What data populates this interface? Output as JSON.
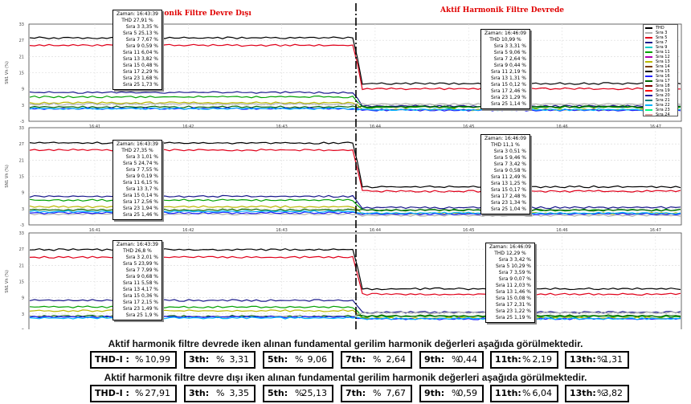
{
  "chart_data": {
    "type": "line",
    "x_ticks": [
      "16:41",
      "16:42",
      "16:43",
      "16:44",
      "16:45",
      "16:46",
      "16:47"
    ],
    "ylim": [
      -3,
      33
    ],
    "y_ticks": [
      "33",
      "27",
      "21",
      "15",
      "9",
      "3",
      "-3"
    ],
    "titles": {
      "left": "Aktif Harmonik Filtre Devre Dışı",
      "right": "Aktif Harmonik Filtre Devrede"
    },
    "legend": [
      {
        "name": "THD",
        "color": "#000000"
      },
      {
        "name": "Sıra 3",
        "color": "#b0b0b0"
      },
      {
        "name": "Sıra 5",
        "color": "#e0001a"
      },
      {
        "name": "Sıra 7",
        "color": "#1a1a8c"
      },
      {
        "name": "Sıra 9",
        "color": "#00c8c8"
      },
      {
        "name": "Sıra 11",
        "color": "#00a000"
      },
      {
        "name": "Sıra 12",
        "color": "#b000b0"
      },
      {
        "name": "Sıra 13",
        "color": "#b8b800"
      },
      {
        "name": "Sıra 14",
        "color": "#7a3c00"
      },
      {
        "name": "Sıra 15",
        "color": "#000000"
      },
      {
        "name": "Sıra 16",
        "color": "#1e1eff"
      },
      {
        "name": "Sıra 17",
        "color": "#006400"
      },
      {
        "name": "Sıra 18",
        "color": "#800000"
      },
      {
        "name": "Sıra 19",
        "color": "#ff0000"
      },
      {
        "name": "Sıra 20",
        "color": "#2020a0"
      },
      {
        "name": "Sıra 21",
        "color": "#008080"
      },
      {
        "name": "Sıra 22",
        "color": "#00b4ff"
      },
      {
        "name": "Sıra 23",
        "color": "#00ff80"
      },
      {
        "name": "Sıra 24",
        "color": "#d8a0a0"
      }
    ],
    "panels": [
      {
        "ylabel": "SN1 Vh (%)",
        "series": [
          {
            "name": "THD",
            "color": "#000000",
            "before": 27.91,
            "after": 10.99
          },
          {
            "name": "Sıra 5",
            "color": "#e0001a",
            "before": 25.13,
            "after": 9.06
          },
          {
            "name": "Sıra 11",
            "color": "#00a000",
            "before": 6.04,
            "after": 2.19
          },
          {
            "name": "Sıra 13",
            "color": "#b8b800",
            "before": 3.82,
            "after": 1.31
          },
          {
            "name": "Sıra 7",
            "color": "#1a1a8c",
            "before": 7.67,
            "after": 2.64
          },
          {
            "name": "Sıra 17",
            "color": "#006400",
            "before": 2.29,
            "after": 2.46
          },
          {
            "name": "Sıra 3",
            "color": "#b0b0b0",
            "before": 3.35,
            "after": 3.31
          },
          {
            "name": "Sıra 25",
            "color": "#1e1eff",
            "before": 1.73,
            "after": 1.14
          },
          {
            "name": "Sıra 23",
            "color": "#00b4ff",
            "before": 1.68,
            "after": 1.29
          }
        ],
        "tip_before": {
          "time": "Zaman: 16:43:39",
          "thd": "THD 27,91 %",
          "rows": [
            "Sıra 3 3,35 %",
            "Sıra 5 25,13 %",
            "Sıra 7 7,67 %",
            "Sıra 9 0,59 %",
            "Sıra 11 6,04 %",
            "Sıra 13 3,82 %",
            "Sıra 15 0,48 %",
            "Sıra 17 2,29 %",
            "Sıra 23 1,68 %",
            "Sıra 25 1,73 %"
          ]
        },
        "tip_after": {
          "time": "Zaman: 16:46:09",
          "thd": "THD 10,99 %",
          "rows": [
            "Sıra 3 3,31 %",
            "Sıra 5 9,06 %",
            "Sıra 7 2,64 %",
            "Sıra 9 0,44 %",
            "Sıra 11 2,19 %",
            "Sıra 13 1,31 %",
            "Sıra 15 0,12 %",
            "Sıra 17 2,46 %",
            "Sıra 23 1,29 %",
            "Sıra 25 1,14 %"
          ]
        }
      },
      {
        "ylabel": "SN1 Vh (%)",
        "series": [
          {
            "name": "THD",
            "color": "#000000",
            "before": 27.35,
            "after": 11.1
          },
          {
            "name": "Sıra 5",
            "color": "#e0001a",
            "before": 24.74,
            "after": 9.46
          },
          {
            "name": "Sıra 11",
            "color": "#00a000",
            "before": 6.15,
            "after": 2.49
          },
          {
            "name": "Sıra 13",
            "color": "#b8b800",
            "before": 3.7,
            "after": 1.25
          },
          {
            "name": "Sıra 7",
            "color": "#1a1a8c",
            "before": 7.55,
            "after": 3.42
          },
          {
            "name": "Sıra 17",
            "color": "#006400",
            "before": 2.56,
            "after": 2.48
          },
          {
            "name": "Sıra 3",
            "color": "#b0b0b0",
            "before": 1.01,
            "after": 0.51
          },
          {
            "name": "Sıra 25",
            "color": "#1e1eff",
            "before": 1.46,
            "after": 1.04
          },
          {
            "name": "Sıra 23",
            "color": "#00b4ff",
            "before": 1.94,
            "after": 1.34
          }
        ],
        "tip_before": {
          "time": "Zaman: 16:43:39",
          "thd": "THD 27,35 %",
          "rows": [
            "Sıra 3 1,01 %",
            "Sıra 5 24,74 %",
            "Sıra 7 7,55 %",
            "Sıra 9 0,19 %",
            "Sıra 11 6,15 %",
            "Sıra 13 3,7 %",
            "Sıra 15 0,14 %",
            "Sıra 17 2,56 %",
            "Sıra 23 1,94 %",
            "Sıra 25 1,46 %"
          ]
        },
        "tip_after": {
          "time": "Zaman: 16:46:09",
          "thd": "THD 11,1 %",
          "rows": [
            "Sıra 3 0,51 %",
            "Sıra 5 9,46 %",
            "Sıra 7 3,42 %",
            "Sıra 9 0,58 %",
            "Sıra 11 2,49 %",
            "Sıra 13 1,25 %",
            "Sıra 15 0,17 %",
            "Sıra 17 2,48 %",
            "Sıra 23 1,34 %",
            "Sıra 25 1,04 %"
          ]
        }
      },
      {
        "ylabel": "SN1 Vh (%)",
        "series": [
          {
            "name": "THD",
            "color": "#000000",
            "before": 26.8,
            "after": 12.29
          },
          {
            "name": "Sıra 5",
            "color": "#e0001a",
            "before": 23.99,
            "after": 10.29
          },
          {
            "name": "Sıra 11",
            "color": "#00a000",
            "before": 5.58,
            "after": 2.03
          },
          {
            "name": "Sıra 13",
            "color": "#b8b800",
            "before": 4.17,
            "after": 1.46
          },
          {
            "name": "Sıra 7",
            "color": "#1a1a8c",
            "before": 7.99,
            "after": 3.59
          },
          {
            "name": "Sıra 17",
            "color": "#006400",
            "before": 2.15,
            "after": 2.31
          },
          {
            "name": "Sıra 3",
            "color": "#b0b0b0",
            "before": 2.01,
            "after": 3.42
          },
          {
            "name": "Sıra 25",
            "color": "#1e1eff",
            "before": 1.9,
            "after": 1.19
          },
          {
            "name": "Sıra 23",
            "color": "#00b4ff",
            "before": 1.49,
            "after": 1.22
          }
        ],
        "tip_before": {
          "time": "Zaman: 16:43:39",
          "thd": "THD 26,8 %",
          "rows": [
            "Sıra 3 2,01 %",
            "Sıra 5 23,99 %",
            "Sıra 7 7,99 %",
            "Sıra 9 0,68 %",
            "Sıra 11 5,58 %",
            "Sıra 13 4,17 %",
            "Sıra 15 0,36 %",
            "Sıra 17 2,15 %",
            "Sıra 23 1,49 %",
            "Sıra 25 1,9 %"
          ]
        },
        "tip_after": {
          "time": "Zaman: 16:46:09",
          "thd": "THD 12,29 %",
          "rows": [
            "Sıra 3 3,42 %",
            "Sıra 5 10,29 %",
            "Sıra 7 3,59 %",
            "Sıra 9 0,07 %",
            "Sıra 11 2,03 %",
            "Sıra 13 1,46 %",
            "Sıra 15 0,08 %",
            "Sıra 17 2,31 %",
            "Sıra 23 1,22 %",
            "Sıra 25 1,19 %"
          ]
        }
      }
    ]
  },
  "captions": {
    "active": "Aktif harmonik filtre devrede iken alınan fundamental gerilim harmonik değerleri aşağıda görülmektedir.",
    "inactive": "Aktif harmonik filtre devre dışı iken alınan fundamental gerilim harmonik değerleri aşağıda görülmektedir."
  },
  "pct_symbol": "%",
  "active_values": [
    {
      "label": "THD-I :",
      "value": "10,99"
    },
    {
      "label": "3th:",
      "value": "3,31"
    },
    {
      "label": "5th:",
      "value": "9,06"
    },
    {
      "label": "7th:",
      "value": "2,64"
    },
    {
      "label": "9th:",
      "value": "0,44"
    },
    {
      "label": "11th:",
      "value": "2,19"
    },
    {
      "label": "13th:",
      "value": "1,31"
    }
  ],
  "inactive_values": [
    {
      "label": "THD-I :",
      "value": "27,91"
    },
    {
      "label": "3th:",
      "value": "3,35"
    },
    {
      "label": "5th:",
      "value": "25,13"
    },
    {
      "label": "7th:",
      "value": "7,67"
    },
    {
      "label": "9th:",
      "value": "0,59"
    },
    {
      "label": "11th:",
      "value": "6,04"
    },
    {
      "label": "13th:",
      "value": "3,82"
    }
  ]
}
